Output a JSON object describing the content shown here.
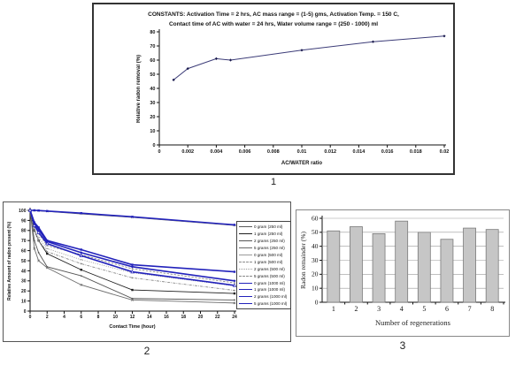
{
  "figure_labels": {
    "fig1": "1",
    "fig2": "2",
    "fig3": "3"
  },
  "colors": {
    "chart1_line": "#3c3c78",
    "chart1_marker": "#1a1a4d",
    "group_250ml": "#3a3a3a",
    "group_500ml": "#949494",
    "group_1000ml": "#2222bb",
    "bar_fill": "#c6c6c6",
    "bar_border": "#7a7a7a",
    "grid": "#9a9a9a",
    "axis": "#111111"
  },
  "chart_data": [
    {
      "id": "chart1",
      "type": "line",
      "title_line1": "CONSTANTS: Activation Time = 2 hrs,  AC mass range = (1-5) gms, Activation Temp. = 150 C,",
      "title_line2": "Contact time of  AC with water = 24 hrs, Water volume range = (250 - 1000) ml",
      "xlabel": "AC/WATER ratio",
      "ylabel": "Relative radon removal (%)",
      "xlim": [
        0,
        0.02
      ],
      "ylim": [
        0,
        80
      ],
      "xticks": [
        0,
        0.002,
        0.004,
        0.006,
        0.008,
        0.01,
        0.012,
        0.014,
        0.016,
        0.018,
        0.02
      ],
      "xtick_labels": [
        "0",
        "0.002",
        "0.004",
        "0.006",
        "0.008",
        "0.01",
        "0.012",
        "0.014",
        "0.016",
        "0.018",
        "0.02"
      ],
      "yticks": [
        0,
        10,
        20,
        30,
        40,
        50,
        60,
        70,
        80
      ],
      "grid": false,
      "legend_position": "none",
      "series": [
        {
          "name": "Relative radon removal",
          "x": [
            0.001,
            0.002,
            0.004,
            0.005,
            0.01,
            0.015,
            0.02
          ],
          "y": [
            46,
            54,
            61,
            60,
            67,
            73,
            77
          ],
          "color": "#3c3c78",
          "width": 1,
          "dash": "",
          "marker": "diamond",
          "marker_color": "#1a1a4d"
        }
      ]
    },
    {
      "id": "chart2",
      "type": "line",
      "xlabel": "Contact Time (hour)",
      "ylabel": "Relative Amount of radon present (%)",
      "xlim": [
        0,
        24
      ],
      "ylim": [
        0,
        100
      ],
      "xticks": [
        0,
        2,
        4,
        6,
        8,
        10,
        12,
        14,
        16,
        18,
        20,
        22,
        24
      ],
      "xtick_labels": [
        "0",
        "2",
        "4",
        "6",
        "8",
        "10",
        "12",
        "14",
        "16",
        "18",
        "20",
        "22",
        "24"
      ],
      "yticks": [
        0,
        10,
        20,
        30,
        40,
        50,
        60,
        70,
        80,
        90,
        100
      ],
      "grid": false,
      "legend_position": "right",
      "x": [
        0,
        0.5,
        1,
        2,
        6,
        12,
        24
      ],
      "series": [
        {
          "name": "0 gram (250 ml)",
          "values": [
            100,
            99.8,
            99.5,
            99,
            96.5,
            93,
            85
          ],
          "color": "#5a5a5a",
          "width": 0.9,
          "dash": "",
          "marker": "dash"
        },
        {
          "name": "1 gram  (250 ml)",
          "values": [
            100,
            80,
            70,
            57,
            41,
            21,
            17.5
          ],
          "color": "#1e1e1e",
          "width": 0.9,
          "dash": "",
          "marker": "square"
        },
        {
          "name": "2 grams  (250 ml)",
          "values": [
            100,
            70,
            58,
            44,
            35,
            12.5,
            11
          ],
          "color": "#555555",
          "width": 0.9,
          "dash": "",
          "marker": "dot"
        },
        {
          "name": "5 grams  (250 ml)",
          "values": [
            100,
            62,
            50,
            43,
            26,
            11,
            8
          ],
          "color": "#6a6a6a",
          "width": 0.9,
          "dash": "",
          "marker": "x"
        },
        {
          "name": "0 gram  (500 ml)",
          "values": [
            100,
            99.9,
            99.6,
            99.1,
            96.8,
            93.2,
            85.2
          ],
          "color": "#9a9a9a",
          "width": 0.8,
          "dash": "",
          "marker": "x"
        },
        {
          "name": "1 gram (500 ml)",
          "values": [
            100,
            85,
            77,
            65,
            56,
            42,
            28
          ],
          "color": "#8e8e8e",
          "width": 0.9,
          "dash": "2.5,1.5",
          "marker": "dot"
        },
        {
          "name": "2 grams (500 ml)",
          "values": [
            100,
            83,
            73,
            62,
            51,
            38,
            25
          ],
          "color": "#9a9a9a",
          "width": 0.9,
          "dash": "1,1.5",
          "marker": "dash"
        },
        {
          "name": "5 grams (500 ml)",
          "values": [
            100,
            80,
            70,
            59,
            47,
            33,
            20.5
          ],
          "color": "#8a8a8a",
          "width": 0.9,
          "dash": "3,1.2,0.8,1.2",
          "marker": "dot"
        },
        {
          "name": "0 gram (1000 ml)",
          "values": [
            100,
            100,
            99.8,
            99.3,
            97.2,
            93.6,
            85.6
          ],
          "color": "#2222bb",
          "width": 1.6,
          "dash": "",
          "marker": "square"
        },
        {
          "name": "1 gram  (1000 ml)",
          "values": [
            100,
            88,
            83,
            70,
            61,
            46,
            39
          ],
          "color": "#2222bb",
          "width": 1.6,
          "dash": "",
          "marker": "square"
        },
        {
          "name": "2 grams  (1000 ml)",
          "values": [
            100,
            87,
            81,
            69,
            58,
            44,
            30
          ],
          "color": "#2222bb",
          "width": 1.6,
          "dash": "",
          "marker": "diamond"
        },
        {
          "name": "5 grams  (1000 ml)",
          "values": [
            100,
            85,
            78,
            67,
            55,
            39,
            25.5
          ],
          "color": "#2222bb",
          "width": 1.6,
          "dash": "",
          "marker": "triangle"
        }
      ]
    },
    {
      "id": "chart3",
      "type": "bar",
      "xlabel": "Number of regenerations",
      "ylabel": "Radon remainder (%)",
      "categories": [
        "1",
        "2",
        "3",
        "4",
        "5",
        "6",
        "7",
        "8"
      ],
      "values": [
        51,
        54,
        49,
        58,
        50,
        45,
        53,
        52
      ],
      "ylim": [
        0,
        60
      ],
      "yticks": [
        0,
        10,
        20,
        30,
        40,
        50,
        60
      ],
      "grid": true,
      "legend_position": "none"
    }
  ]
}
